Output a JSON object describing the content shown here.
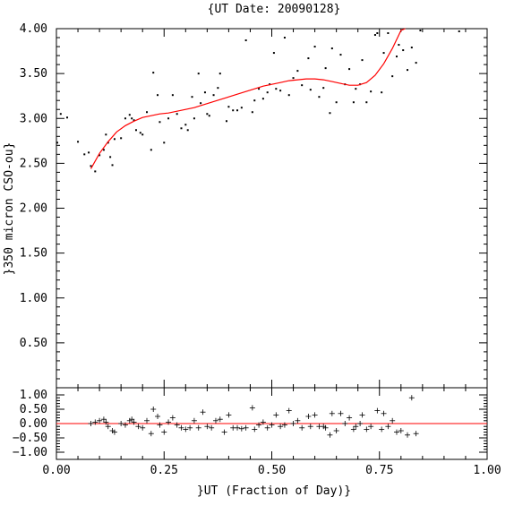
{
  "chart_data": [
    {
      "type": "scatter",
      "title": "{UT Date: 20090128}",
      "xlabel": "",
      "ylabel": "}350 micron CSO-ou}",
      "xlim": [
        0.0,
        1.0
      ],
      "ylim": [
        0.0,
        4.0
      ],
      "yticks": [
        "0.50",
        "1.00",
        "1.50",
        "2.00",
        "2.50",
        "3.00",
        "3.50",
        "4.00"
      ],
      "grid": false,
      "series": [
        {
          "kind": "points",
          "color": "#000000",
          "x": [
            0.002,
            0.01,
            0.025,
            0.05,
            0.065,
            0.075,
            0.08,
            0.09,
            0.1,
            0.11,
            0.115,
            0.12,
            0.125,
            0.13,
            0.135,
            0.15,
            0.16,
            0.17,
            0.175,
            0.18,
            0.185,
            0.195,
            0.2,
            0.21,
            0.22,
            0.225,
            0.235,
            0.24,
            0.25,
            0.26,
            0.27,
            0.28,
            0.29,
            0.3,
            0.305,
            0.315,
            0.32,
            0.33,
            0.335,
            0.345,
            0.35,
            0.355,
            0.365,
            0.375,
            0.38,
            0.395,
            0.4,
            0.41,
            0.42,
            0.43,
            0.44,
            0.455,
            0.46,
            0.47,
            0.48,
            0.49,
            0.495,
            0.505,
            0.51,
            0.52,
            0.53,
            0.54,
            0.55,
            0.56,
            0.57,
            0.585,
            0.59,
            0.6,
            0.61,
            0.62,
            0.625,
            0.635,
            0.64,
            0.65,
            0.66,
            0.67,
            0.68,
            0.69,
            0.695,
            0.705,
            0.71,
            0.72,
            0.73,
            0.74,
            0.745,
            0.755,
            0.76,
            0.77,
            0.78,
            0.79,
            0.795,
            0.805,
            0.815,
            0.825,
            0.835,
            0.845,
            0.935
          ],
          "y": [
            2.73,
            3.05,
            3.01,
            2.74,
            2.6,
            2.62,
            2.47,
            2.41,
            2.59,
            2.65,
            2.82,
            2.73,
            2.57,
            2.48,
            2.77,
            2.78,
            3.0,
            3.04,
            3.0,
            2.98,
            2.87,
            2.84,
            2.82,
            3.07,
            2.65,
            3.51,
            3.26,
            2.96,
            2.73,
            3.0,
            3.26,
            3.05,
            2.89,
            2.93,
            2.87,
            3.24,
            3.0,
            3.5,
            3.17,
            3.29,
            3.05,
            3.03,
            3.26,
            3.34,
            3.5,
            2.97,
            3.13,
            3.09,
            3.09,
            3.12,
            3.87,
            3.07,
            3.2,
            3.33,
            3.22,
            3.29,
            3.38,
            3.73,
            3.33,
            3.31,
            3.9,
            3.26,
            3.45,
            3.53,
            3.37,
            3.67,
            3.32,
            3.8,
            3.24,
            3.34,
            3.56,
            3.06,
            3.78,
            3.18,
            3.71,
            3.38,
            3.55,
            3.18,
            3.33,
            3.38,
            3.65,
            3.18,
            3.3,
            3.93,
            3.95,
            3.29,
            3.73,
            3.95,
            3.47,
            3.69,
            3.82,
            3.76,
            3.54,
            3.79,
            3.62,
            3.98,
            3.97
          ]
        },
        {
          "kind": "fit-curve",
          "color": "#ff0000",
          "x": [
            0.08,
            0.1,
            0.12,
            0.14,
            0.16,
            0.18,
            0.2,
            0.22,
            0.24,
            0.26,
            0.28,
            0.3,
            0.32,
            0.34,
            0.36,
            0.38,
            0.4,
            0.42,
            0.44,
            0.46,
            0.48,
            0.5,
            0.52,
            0.54,
            0.56,
            0.58,
            0.6,
            0.62,
            0.64,
            0.66,
            0.68,
            0.7,
            0.72,
            0.74,
            0.76,
            0.78,
            0.8,
            0.81
          ],
          "y": [
            2.44,
            2.61,
            2.74,
            2.85,
            2.92,
            2.97,
            3.01,
            3.03,
            3.05,
            3.06,
            3.08,
            3.1,
            3.12,
            3.15,
            3.18,
            3.21,
            3.24,
            3.27,
            3.3,
            3.33,
            3.36,
            3.38,
            3.4,
            3.42,
            3.43,
            3.44,
            3.44,
            3.43,
            3.41,
            3.39,
            3.37,
            3.37,
            3.4,
            3.48,
            3.61,
            3.78,
            3.98,
            4.05
          ]
        }
      ]
    },
    {
      "type": "scatter",
      "title": "",
      "xlabel": "}UT (Fraction of Day)}",
      "ylabel": "",
      "xlim": [
        0.0,
        1.0
      ],
      "ylim": [
        -1.25,
        1.25
      ],
      "xticks": [
        "0.00",
        "0.25",
        "0.50",
        "0.75",
        "1.00"
      ],
      "yticks": [
        "−1.00",
        "−0.50",
        "0.00",
        "0.50",
        "1.00"
      ],
      "grid": false,
      "series": [
        {
          "kind": "residual-points",
          "color": "#000000",
          "x": [
            0.08,
            0.09,
            0.1,
            0.11,
            0.115,
            0.12,
            0.13,
            0.135,
            0.15,
            0.16,
            0.17,
            0.175,
            0.18,
            0.19,
            0.2,
            0.21,
            0.22,
            0.225,
            0.235,
            0.24,
            0.25,
            0.26,
            0.27,
            0.28,
            0.29,
            0.3,
            0.31,
            0.32,
            0.33,
            0.34,
            0.35,
            0.36,
            0.37,
            0.38,
            0.39,
            0.4,
            0.41,
            0.42,
            0.43,
            0.44,
            0.455,
            0.46,
            0.47,
            0.48,
            0.49,
            0.5,
            0.51,
            0.52,
            0.53,
            0.54,
            0.55,
            0.56,
            0.57,
            0.585,
            0.59,
            0.6,
            0.61,
            0.62,
            0.625,
            0.635,
            0.64,
            0.65,
            0.66,
            0.67,
            0.68,
            0.69,
            0.695,
            0.705,
            0.71,
            0.72,
            0.73,
            0.745,
            0.755,
            0.76,
            0.77,
            0.78,
            0.79,
            0.8,
            0.815,
            0.825,
            0.835
          ],
          "y": [
            0.0,
            0.05,
            0.1,
            0.15,
            0.05,
            -0.1,
            -0.25,
            -0.3,
            0.0,
            -0.05,
            0.1,
            0.15,
            0.05,
            -0.1,
            -0.15,
            0.1,
            -0.35,
            0.5,
            0.25,
            -0.05,
            -0.3,
            0.05,
            0.2,
            -0.05,
            -0.15,
            -0.2,
            -0.15,
            0.1,
            -0.15,
            0.4,
            -0.1,
            -0.15,
            0.1,
            0.15,
            -0.3,
            0.3,
            -0.15,
            -0.15,
            -0.18,
            -0.15,
            0.55,
            -0.2,
            -0.05,
            0.05,
            -0.15,
            -0.05,
            0.3,
            -0.1,
            -0.05,
            0.45,
            0.0,
            0.1,
            -0.15,
            0.25,
            -0.1,
            0.3,
            -0.1,
            -0.1,
            -0.15,
            -0.4,
            0.35,
            -0.25,
            0.35,
            0.0,
            0.2,
            -0.2,
            -0.1,
            0.0,
            0.3,
            -0.2,
            -0.1,
            0.45,
            -0.2,
            0.35,
            -0.1,
            0.1,
            -0.3,
            -0.25,
            -0.4,
            0.9,
            -0.35
          ]
        },
        {
          "kind": "zero-line",
          "color": "#ff0000",
          "x": [
            0.0,
            1.0
          ],
          "y": [
            0.0,
            0.0
          ]
        }
      ]
    }
  ]
}
